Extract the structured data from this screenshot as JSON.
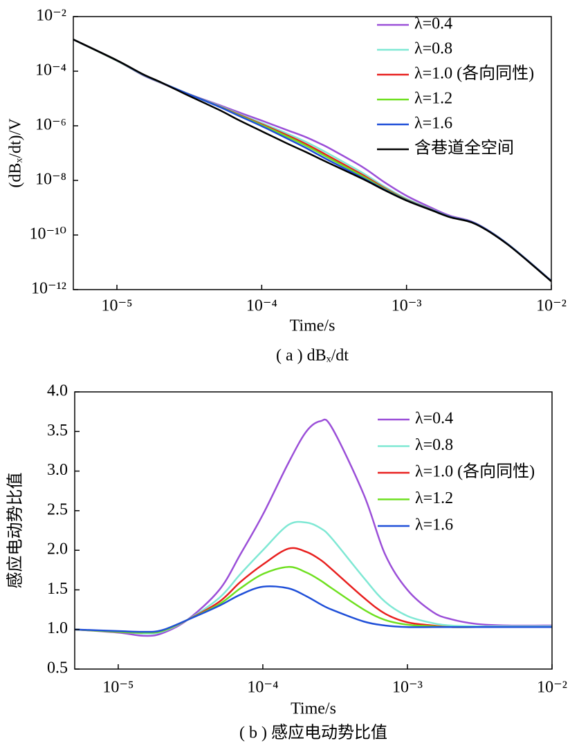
{
  "chart_data": [
    {
      "type": "line",
      "xscale": "log",
      "yscale": "log",
      "legend": "upper right",
      "xlabel": "Time/s",
      "ylabel": "(dBₓ/dt)/V",
      "caption": "( a ) dBₓ/dt",
      "xlim": [
        5e-06,
        0.01
      ],
      "ylim": [
        1e-12,
        0.01
      ],
      "xticks": [
        {
          "value": 1e-05,
          "label": "10⁻⁵"
        },
        {
          "value": 0.0001,
          "label": "10⁻⁴"
        },
        {
          "value": 0.001,
          "label": "10⁻³"
        },
        {
          "value": 0.01,
          "label": "10⁻²"
        }
      ],
      "yticks": [
        {
          "value": 1e-12,
          "label": "10⁻¹²"
        },
        {
          "value": 1e-10,
          "label": "10⁻¹⁰"
        },
        {
          "value": 1e-08,
          "label": "10⁻⁸"
        },
        {
          "value": 1e-06,
          "label": "10⁻⁶"
        },
        {
          "value": 0.0001,
          "label": "10⁻⁴"
        },
        {
          "value": 0.01,
          "label": "10⁻²"
        }
      ],
      "x": [
        5e-06,
        1e-05,
        1.5e-05,
        2e-05,
        3e-05,
        5e-05,
        7e-05,
        0.0001,
        0.00015,
        0.0002,
        0.00025,
        0.0003,
        0.0005,
        0.0007,
        0.001,
        0.0015,
        0.002,
        0.003,
        0.005,
        0.01
      ],
      "series": [
        {
          "name": "λ=0.4",
          "color": "#9b4fd8",
          "values": [
            0.00145,
            0.000241,
            7.3e-05,
            3.78e-05,
            1.58e-05,
            5.97e-06,
            3.08e-06,
            1.55e-06,
            6.94e-07,
            3.92e-07,
            2.29e-07,
            1.41e-07,
            3.02e-08,
            8.72e-09,
            2.73e-09,
            9.69e-10,
            5.05e-10,
            2.69e-10,
            4.69e-11,
            2.1e-12
          ]
        },
        {
          "name": "λ=0.8",
          "color": "#7fe8d4",
          "values": [
            0.00145,
            0.000243,
            7.54e-05,
            3.86e-05,
            1.58e-05,
            5.57e-06,
            2.69e-06,
            1.26e-06,
            5.2e-07,
            2.63e-07,
            1.44e-07,
            8.56e-08,
            1.85e-08,
            6.03e-09,
            2.13e-09,
            8.58e-10,
            4.69e-10,
            2.61e-10,
            4.65e-11,
            2.08e-12
          ]
        },
        {
          "name": "λ=1.0 (各向同性)",
          "color": "#e8201f",
          "values": [
            0.00145,
            0.000243,
            7.62e-05,
            3.9e-05,
            1.58e-05,
            5.37e-06,
            2.53e-06,
            1.15e-06,
            4.52e-07,
            2.22e-07,
            1.19e-07,
            7e-08,
            1.57e-08,
            5.36e-09,
            1.98e-09,
            8.34e-10,
            4.6e-10,
            2.59e-10,
            4.6e-11,
            2.06e-12
          ]
        },
        {
          "name": "λ=1.2",
          "color": "#6fe020",
          "values": [
            0.00145,
            0.000243,
            7.62e-05,
            3.9e-05,
            1.58e-05,
            5.25e-06,
            2.4e-06,
            1.07e-06,
            4.01e-07,
            1.93e-07,
            1.02e-07,
            6.05e-08,
            1.4e-08,
            5.01e-09,
            1.93e-09,
            8.26e-10,
            4.6e-10,
            2.59e-10,
            4.6e-11,
            2.06e-12
          ]
        },
        {
          "name": "λ=1.6",
          "color": "#1f4fd8",
          "values": [
            0.00145,
            0.000246,
            7.7e-05,
            3.94e-05,
            1.58e-05,
            5.17e-06,
            2.28e-06,
            9.72e-07,
            3.4e-07,
            1.59e-07,
            8.33e-08,
            4.98e-08,
            1.23e-08,
            4.69e-09,
            1.87e-09,
            8.18e-10,
            4.6e-10,
            2.59e-10,
            4.6e-11,
            2.06e-12
          ]
        },
        {
          "name": "含巷道全空间",
          "color": "#000000",
          "values": [
            0.00145,
            0.000251,
            7.94e-05,
            3.98e-05,
            1.41e-05,
            3.98e-06,
            1.58e-06,
            6.31e-07,
            2.24e-07,
            1.12e-07,
            6.31e-08,
            3.98e-08,
            1.12e-08,
            4.47e-09,
            1.82e-09,
            7.94e-10,
            4.47e-10,
            2.51e-10,
            4.47e-11,
            2e-12
          ]
        }
      ]
    },
    {
      "type": "line",
      "xscale": "log",
      "legend": "upper right",
      "xlabel": "Time/s",
      "ylabel": "感应电动势比值",
      "caption": "( b ) 感应电动势比值",
      "xlim": [
        5e-06,
        0.01
      ],
      "ylim": [
        0.5,
        4
      ],
      "xticks": [
        {
          "value": 1e-05,
          "label": "10⁻⁵"
        },
        {
          "value": 0.0001,
          "label": "10⁻⁴"
        },
        {
          "value": 0.001,
          "label": "10⁻³"
        },
        {
          "value": 0.01,
          "label": "10⁻²"
        }
      ],
      "yticks": [
        0.5,
        {
          "value": 1,
          "label": "1.0"
        },
        1.5,
        {
          "value": 2,
          "label": "2.0"
        },
        2.5,
        {
          "value": 3,
          "label": "3.0"
        },
        3.5,
        {
          "value": 4,
          "label": "4.0"
        }
      ],
      "x": [
        5e-06,
        1e-05,
        1.5e-05,
        2e-05,
        3e-05,
        5e-05,
        7e-05,
        0.0001,
        0.00015,
        0.0002,
        0.00025,
        0.0003,
        0.0005,
        0.0007,
        0.001,
        0.0015,
        0.002,
        0.003,
        0.005,
        0.01
      ],
      "series": [
        {
          "name": "λ=0.4",
          "color": "#9b4fd8",
          "values": [
            1.0,
            0.96,
            0.92,
            0.95,
            1.12,
            1.5,
            1.95,
            2.45,
            3.1,
            3.5,
            3.63,
            3.55,
            2.7,
            1.95,
            1.5,
            1.22,
            1.13,
            1.07,
            1.05,
            1.05
          ]
        },
        {
          "name": "λ=0.8",
          "color": "#7fe8d4",
          "values": [
            1.0,
            0.97,
            0.95,
            0.97,
            1.12,
            1.4,
            1.7,
            2.0,
            2.32,
            2.35,
            2.28,
            2.15,
            1.65,
            1.35,
            1.17,
            1.08,
            1.05,
            1.04,
            1.04,
            1.04
          ]
        },
        {
          "name": "λ=1.0 (各向同性)",
          "color": "#e8201f",
          "values": [
            1.0,
            0.97,
            0.96,
            0.98,
            1.12,
            1.35,
            1.6,
            1.82,
            2.02,
            1.98,
            1.88,
            1.76,
            1.4,
            1.2,
            1.09,
            1.05,
            1.03,
            1.03,
            1.03,
            1.03
          ]
        },
        {
          "name": "λ=1.2",
          "color": "#6fe020",
          "values": [
            1.0,
            0.97,
            0.96,
            0.98,
            1.12,
            1.32,
            1.52,
            1.7,
            1.79,
            1.72,
            1.62,
            1.52,
            1.25,
            1.12,
            1.06,
            1.04,
            1.03,
            1.03,
            1.03,
            1.03
          ]
        },
        {
          "name": "λ=1.6",
          "color": "#1f4fd8",
          "values": [
            1.0,
            0.98,
            0.97,
            0.99,
            1.12,
            1.3,
            1.44,
            1.54,
            1.52,
            1.42,
            1.32,
            1.25,
            1.1,
            1.05,
            1.03,
            1.03,
            1.03,
            1.03,
            1.03,
            1.03
          ]
        }
      ]
    }
  ]
}
